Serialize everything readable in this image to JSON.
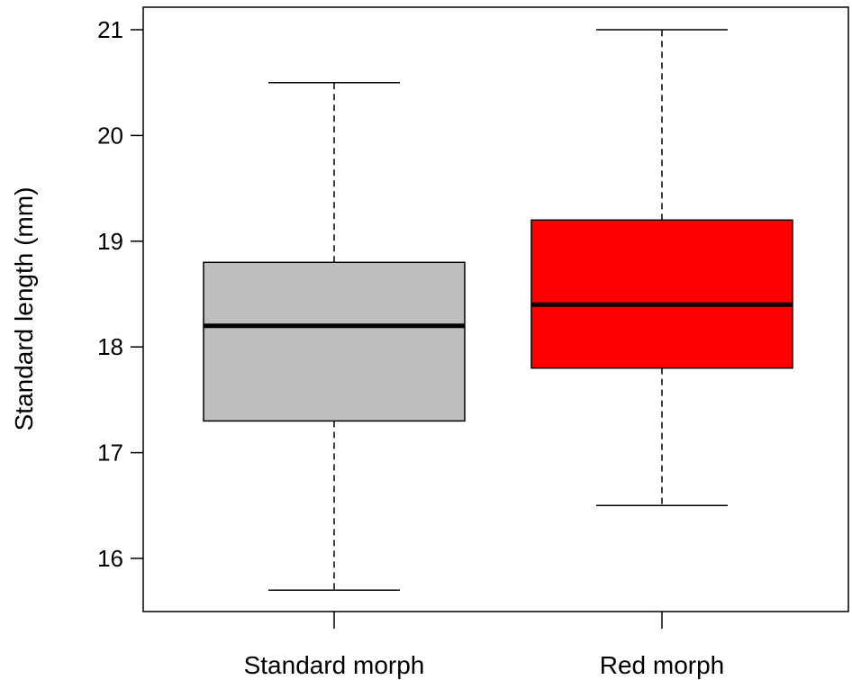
{
  "chart_data": {
    "type": "boxplot",
    "title": "",
    "xlabel": "",
    "ylabel": "Standard length (mm)",
    "ylim": [
      15.5,
      21.2
    ],
    "yticks": [
      16,
      17,
      18,
      19,
      20,
      21
    ],
    "grid": false,
    "legend": "none",
    "categories": [
      "Standard morph",
      "Red morph"
    ],
    "series": [
      {
        "category": "Standard morph",
        "whisker_low": 15.7,
        "q1": 17.3,
        "median": 18.2,
        "q3": 18.8,
        "whisker_high": 20.5,
        "color": "#bebebe"
      },
      {
        "category": "Red morph",
        "whisker_low": 16.5,
        "q1": 17.8,
        "median": 18.4,
        "q3": 19.2,
        "whisker_high": 21.0,
        "color": "#ff0000"
      }
    ]
  }
}
